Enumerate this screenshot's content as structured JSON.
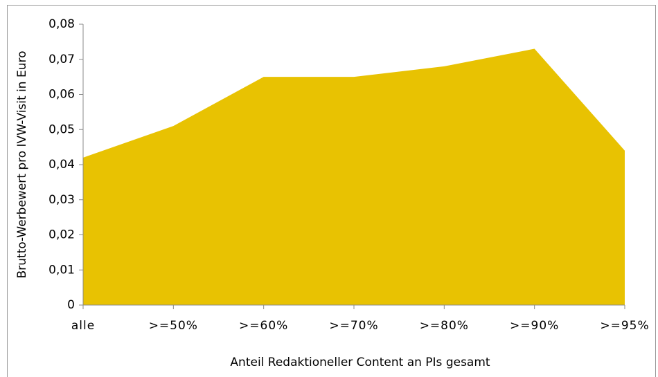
{
  "chart_data": {
    "type": "area",
    "categories": [
      "alle",
      ">=50%",
      ">=60%",
      ">=70%",
      ">=80%",
      ">=90%",
      ">=95%"
    ],
    "values": [
      0.042,
      0.051,
      0.065,
      0.065,
      0.068,
      0.073,
      0.044
    ],
    "color": "#e8c202",
    "ylim": [
      0,
      0.08
    ],
    "yticks": [
      0,
      {
        "value": 0.01,
        "label": "0,01"
      },
      {
        "value": 0.02,
        "label": "0,02"
      },
      {
        "value": 0.03,
        "label": "0,03"
      },
      {
        "value": 0.04,
        "label": "0,04"
      },
      {
        "value": 0.05,
        "label": "0,05"
      },
      {
        "value": 0.06,
        "label": "0,06"
      },
      {
        "value": 0.07,
        "label": "0,07"
      },
      {
        "value": 0.08,
        "label": "0,08"
      }
    ],
    "ylabel": "Brutto-Werbewert pro IVW-Visit in Euro",
    "xlabel": "Anteil Redaktioneller Content an PIs gesamt"
  }
}
